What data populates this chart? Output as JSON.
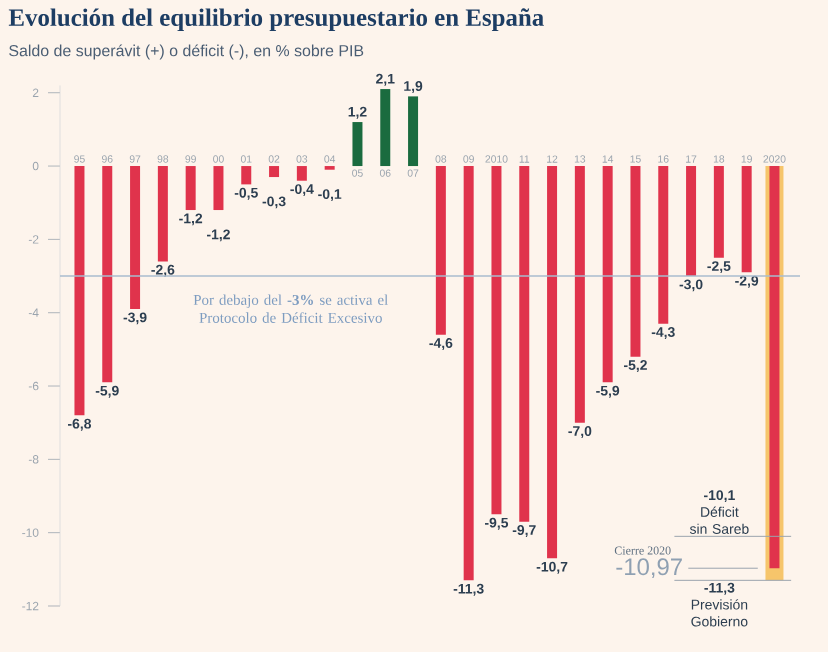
{
  "chart_data": {
    "type": "bar",
    "title": "Evolución del equilibrio presupuestario en España",
    "subtitle": "Saldo de superávit (+) o déficit (-), en % sobre PIB",
    "categories": [
      "95",
      "96",
      "97",
      "98",
      "99",
      "00",
      "01",
      "02",
      "03",
      "04",
      "05",
      "06",
      "07",
      "08",
      "09",
      "2010",
      "11",
      "12",
      "13",
      "14",
      "15",
      "16",
      "17",
      "18",
      "19",
      "2020"
    ],
    "series": [
      {
        "color": "#f6c56b",
        "values": [
          null,
          null,
          null,
          null,
          null,
          null,
          null,
          null,
          null,
          null,
          null,
          null,
          null,
          null,
          null,
          null,
          null,
          null,
          null,
          null,
          null,
          null,
          null,
          null,
          null,
          -11.3
        ]
      },
      {
        "colors": [
          "#e0334c",
          "#e0334c",
          "#e0334c",
          "#e0334c",
          "#e0334c",
          "#e0334c",
          "#e0334c",
          "#e0334c",
          "#e0334c",
          "#e0334c",
          "#1a6b3f",
          "#1a6b3f",
          "#1a6b3f",
          "#e0334c",
          "#e0334c",
          "#e0334c",
          "#e0334c",
          "#e0334c",
          "#e0334c",
          "#e0334c",
          "#e0334c",
          "#e0334c",
          "#e0334c",
          "#e0334c",
          "#e0334c",
          "#e0334c"
        ],
        "values": [
          -6.8,
          -5.9,
          -3.9,
          -2.6,
          -1.2,
          -1.2,
          -0.5,
          -0.3,
          -0.4,
          -0.1,
          1.2,
          2.1,
          1.9,
          -4.6,
          -11.3,
          -9.5,
          -9.7,
          -10.7,
          -7.0,
          -5.9,
          -5.2,
          -4.3,
          -3.0,
          -2.5,
          -2.9,
          -10.97
        ],
        "value_labels": [
          "-6,8",
          "-5,9",
          "-3,9",
          "-2,6",
          "-1,2",
          "-1,2",
          "-0,5",
          "-0,3",
          "-0,4",
          "-0,1",
          "1,2",
          "2,1",
          "1,9",
          "-4,6",
          "-11,3",
          "-9,5",
          "-9,7",
          "-10,7",
          "-7,0",
          "-5,9",
          "-5,2",
          "-4,3",
          "-3,0",
          "-2,5",
          "-2,9",
          null
        ]
      }
    ],
    "ylim": [
      -12,
      2.2
    ],
    "yticks": [
      2,
      0,
      -2,
      -4,
      -6,
      -8,
      -10,
      -12
    ],
    "ref_lines": [
      {
        "axis": "y",
        "value": -3,
        "color": "#a9bccf",
        "label": "Por debajo del **-3%** se activa el Protocolo de Déficit Excesivo"
      }
    ],
    "annotations": [
      {
        "text": "**-10,1** Déficit sin Sareb",
        "x": "2020",
        "y": -10.1
      },
      "Cierre 2020",
      {
        "text": "-10,97",
        "x": "2020",
        "y": -10.97
      },
      {
        "text": "**-11,3** Previsión Gobierno",
        "x": "2020",
        "y": -11.3
      }
    ]
  }
}
